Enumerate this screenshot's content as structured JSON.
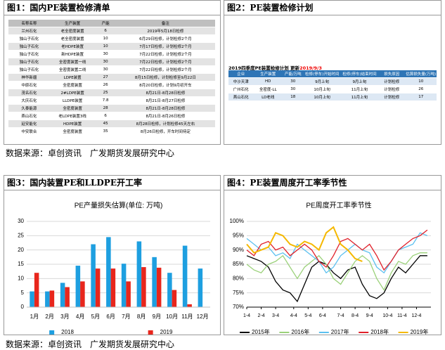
{
  "panel_titles": [
    "图1：国内PE装置检修清单",
    "图2：PE装置检修计划",
    "图3：国内装置PE和LLDPE开工率",
    "图4：PE装置周度开工率季节性"
  ],
  "sources": [
    "数据来源：卓创资讯　广发期货发展研究中心",
    "数据来源：卓创资讯　广发期货发展研究中心"
  ],
  "tables": [
    {
      "header": [
        "名称名称",
        "生产装置",
        "产能",
        "备注"
      ],
      "rows": [
        [
          "兰州石化",
          "老全密度装置",
          "6",
          "2019年5月18日检修"
        ],
        [
          "独山子石化",
          "老全密度装置",
          "10",
          "6月29日检修，计划检修2个月"
        ],
        [
          "独山子石化",
          "老HDPE装置",
          "10",
          "7月17日检修，计划检修2个月"
        ],
        [
          "独山子石化",
          "新HDPE装置",
          "30",
          "7月22日检修，计划检修2个月"
        ],
        [
          "独山子石化",
          "全密度装置一线",
          "30",
          "7月22日检修，计划检修2个月"
        ],
        [
          "独山子石化",
          "全密度装置二线",
          "30",
          "7月22日检修，计划检修2个月"
        ],
        [
          "神华新疆",
          "LDPE装置",
          "27",
          "8月15日检修，计划检修至9月22日"
        ],
        [
          "中原石化",
          "全密度装置",
          "26",
          "8月20日检修，计划9月初开车"
        ],
        [
          "茂名石化",
          "2#LDPE装置",
          "25",
          "8月21日-8月28日检修"
        ],
        [
          "大庆石化",
          "LLDPE装置",
          "7.8",
          "8月21日-8月27日检修"
        ],
        [
          "久泰能源",
          "全密度装置",
          "28",
          "8月21日-8月28日检修"
        ],
        [
          "燕山石化",
          "老LDPE装置3线",
          "6",
          "8月21日-8月26日检修"
        ],
        [
          "延安能化",
          "HDPE装置",
          "45",
          "8月28日检修，计划检修45天左右"
        ],
        [
          "中安联合",
          "全密度装置",
          "35",
          "8月26日检修，开车时间待定"
        ]
      ]
    },
    {
      "caption": "2019四季度PE装置检修计划 更新",
      "caption_date": "2019/9/3",
      "header": [
        "企业",
        "生产装置",
        "产能/万吨",
        "检修(停车)开始时间",
        "检修(停车)结束时间",
        "损失原因",
        "估算损失量(万吨)"
      ],
      "rows": [
        [
          "中沙天津",
          "HD",
          "30",
          "9月上旬",
          "9月上旬",
          "计划检修",
          "10"
        ],
        [
          "广州石化",
          "全密度-LL",
          "30",
          "10月上旬",
          "11月上旬",
          "计划检修",
          "26"
        ],
        [
          "燕山石化",
          "LD老线",
          "18",
          "10月上旬",
          "11月上旬",
          "计划检修",
          "17"
        ]
      ]
    }
  ],
  "chart_data": [
    {
      "type": "bar",
      "title": "PE产量损失估算(单位: 万吨)",
      "categories": [
        "1月",
        "2月",
        "3月",
        "4月",
        "5月",
        "6月",
        "7月",
        "8月",
        "9月",
        "10月",
        "11月",
        "12月"
      ],
      "series": [
        {
          "name": "2018",
          "color": "#1e9fe0",
          "values": [
            5.5,
            5.5,
            8.5,
            14.5,
            22,
            24.5,
            15.2,
            23,
            17.5,
            12,
            21.5,
            13.5
          ]
        },
        {
          "name": "2019",
          "color": "#e8261c",
          "values": [
            12,
            5.8,
            7,
            9,
            13.5,
            13.5,
            9,
            14,
            13.8,
            6,
            1,
            null
          ]
        }
      ],
      "ylim": [
        0,
        30
      ],
      "yticks": [
        0,
        5,
        10,
        15,
        20,
        25,
        30
      ],
      "grid": true
    },
    {
      "type": "line",
      "title": "PE周度开工率季节性",
      "x": [
        1,
        3,
        5,
        7,
        9,
        11,
        13,
        15,
        17,
        19,
        21,
        23,
        25,
        27,
        29,
        31,
        33,
        35,
        37,
        39,
        41,
        43,
        45,
        47,
        49,
        51
      ],
      "xlim": [
        1,
        52
      ],
      "xticks": [
        {
          "value": 1,
          "label": "1-4"
        },
        {
          "value": 5,
          "label": "2-4"
        },
        {
          "value": 9,
          "label": "3-4"
        },
        {
          "value": 14,
          "label": "4-4"
        },
        {
          "value": 18,
          "label": "5-4"
        },
        {
          "value": 22,
          "label": "6-4"
        },
        {
          "value": 27,
          "label": "7-4"
        },
        {
          "value": 31,
          "label": "8-4"
        },
        {
          "value": 35,
          "label": "9-4"
        },
        {
          "value": 40,
          "label": "10-4"
        },
        {
          "value": 44,
          "label": "11-4"
        },
        {
          "value": 48,
          "label": "12-4"
        }
      ],
      "series": [
        {
          "name": "2015年",
          "color": "#000000",
          "values": [
            88,
            87,
            86,
            84,
            79,
            76,
            75,
            72,
            78,
            84,
            86,
            85,
            82,
            80,
            83,
            84,
            78,
            74,
            73,
            75,
            80,
            84,
            82,
            85,
            88,
            88
          ]
        },
        {
          "name": "2016年",
          "color": "#9bd17a",
          "values": [
            85,
            83,
            82,
            85,
            86,
            88,
            84,
            80,
            84,
            86,
            88,
            85,
            80,
            78,
            82,
            86,
            88,
            86,
            80,
            76,
            82,
            86,
            85,
            88,
            89,
            89
          ]
        },
        {
          "name": "2017年",
          "color": "#5bc0f0",
          "values": [
            94,
            92,
            90,
            91,
            88,
            89,
            87,
            92,
            90,
            88,
            86,
            82,
            84,
            88,
            90,
            92,
            90,
            89,
            84,
            82,
            86,
            90,
            91,
            92,
            96,
            95
          ]
        },
        {
          "name": "2018年",
          "color": "#e0202a",
          "values": [
            90,
            88,
            92,
            93,
            90,
            91,
            88,
            90,
            92,
            90,
            86,
            84,
            88,
            93,
            94,
            92,
            90,
            92,
            88,
            83,
            86,
            90,
            92,
            94,
            95,
            97
          ]
        },
        {
          "name": "2019年",
          "color": "#f5b800",
          "values": [
            92,
            89,
            90,
            91,
            96,
            95,
            92,
            91,
            93,
            92,
            90,
            96,
            98,
            92,
            90,
            87,
            86,
            null,
            null,
            null,
            null,
            null,
            null,
            null,
            null,
            null
          ]
        }
      ],
      "ylim": [
        70,
        100
      ],
      "yticks": [
        {
          "value": 70,
          "label": "70%"
        },
        {
          "value": 75,
          "label": "75%"
        },
        {
          "value": 80,
          "label": "80%"
        },
        {
          "value": 85,
          "label": "85%"
        },
        {
          "value": 90,
          "label": "90%"
        },
        {
          "value": 95,
          "label": "95%"
        },
        {
          "value": 100,
          "label": "100%"
        }
      ],
      "grid": true
    }
  ]
}
